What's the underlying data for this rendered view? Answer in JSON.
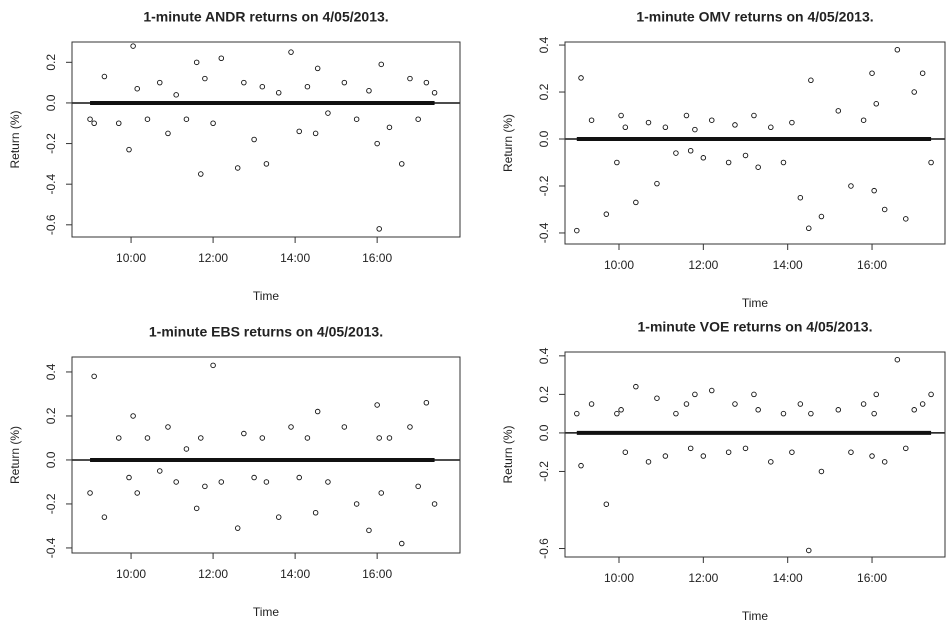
{
  "chart_data": [
    {
      "type": "scatter",
      "title": "1-minute ANDR returns on 4/05/2013.",
      "xlabel": "Time",
      "ylabel": "Return (%)",
      "xlim": [
        8.56,
        18.02
      ],
      "ylim": [
        -0.66,
        0.3
      ],
      "xticks": [
        {
          "value": 10,
          "label": "10:00"
        },
        {
          "value": 12,
          "label": "12:00"
        },
        {
          "value": 14,
          "label": "14:00"
        },
        {
          "value": 16,
          "label": "16:00"
        }
      ],
      "yticks": [
        -0.6,
        -0.4,
        -0.2,
        {
          "value": 0,
          "label": "0.0"
        },
        0.2
      ],
      "hline": 0,
      "x": [
        9.0,
        9.1,
        9.35,
        9.7,
        9.95,
        10.05,
        10.15,
        10.4,
        10.7,
        10.9,
        11.1,
        11.35,
        11.6,
        11.7,
        11.8,
        12.0,
        12.2,
        12.6,
        12.75,
        13.0,
        13.2,
        13.3,
        13.6,
        13.9,
        14.1,
        14.3,
        14.5,
        14.55,
        14.8,
        15.2,
        15.5,
        15.8,
        16.0,
        16.05,
        16.1,
        16.3,
        16.6,
        16.8,
        17.0,
        17.2,
        17.4
      ],
      "values": [
        -0.08,
        -0.1,
        0.13,
        -0.1,
        -0.23,
        0.28,
        0.07,
        -0.08,
        0.1,
        -0.15,
        0.04,
        -0.08,
        0.2,
        -0.35,
        0.12,
        -0.1,
        0.22,
        -0.32,
        0.1,
        -0.18,
        0.08,
        -0.3,
        0.05,
        0.25,
        -0.14,
        0.08,
        -0.15,
        0.17,
        -0.05,
        0.1,
        -0.08,
        0.06,
        -0.2,
        -0.62,
        0.19,
        -0.12,
        -0.3,
        0.12,
        -0.08,
        0.1,
        0.05
      ]
    },
    {
      "type": "scatter",
      "title": "1-minute OMV returns on 4/05/2013.",
      "xlabel": "Time",
      "ylabel": "Return (%)",
      "xlim": [
        8.72,
        17.73
      ],
      "ylim": [
        -0.447,
        0.413
      ],
      "xticks": [
        {
          "value": 10,
          "label": "10:00"
        },
        {
          "value": 12,
          "label": "12:00"
        },
        {
          "value": 14,
          "label": "14:00"
        },
        {
          "value": 16,
          "label": "16:00"
        }
      ],
      "yticks": [
        -0.4,
        -0.2,
        {
          "value": 0,
          "label": "0.0"
        },
        0.2,
        0.4
      ],
      "hline": 0,
      "x": [
        9.0,
        9.1,
        9.35,
        9.7,
        9.95,
        10.05,
        10.15,
        10.4,
        10.7,
        10.9,
        11.1,
        11.35,
        11.6,
        11.7,
        11.8,
        12.0,
        12.2,
        12.6,
        12.75,
        13.0,
        13.2,
        13.3,
        13.6,
        13.9,
        14.1,
        14.3,
        14.5,
        14.55,
        14.8,
        15.2,
        15.5,
        15.8,
        16.0,
        16.05,
        16.1,
        16.3,
        16.6,
        16.8,
        17.0,
        17.2,
        17.4
      ],
      "values": [
        -0.39,
        0.26,
        0.08,
        -0.32,
        -0.1,
        0.1,
        0.05,
        -0.27,
        0.07,
        -0.19,
        0.05,
        -0.06,
        0.1,
        -0.05,
        0.04,
        -0.08,
        0.08,
        -0.1,
        0.06,
        -0.07,
        0.1,
        -0.12,
        0.05,
        -0.1,
        0.07,
        -0.25,
        -0.38,
        0.25,
        -0.33,
        0.12,
        -0.2,
        0.08,
        0.28,
        -0.22,
        0.15,
        -0.3,
        0.38,
        -0.34,
        0.2,
        0.28,
        -0.1
      ]
    },
    {
      "type": "scatter",
      "title": "1-minute EBS returns on 4/05/2013.",
      "xlabel": "Time",
      "ylabel": "Return (%)",
      "xlim": [
        8.56,
        18.02
      ],
      "ylim": [
        -0.423,
        0.468
      ],
      "xticks": [
        {
          "value": 10,
          "label": "10:00"
        },
        {
          "value": 12,
          "label": "12:00"
        },
        {
          "value": 14,
          "label": "14:00"
        },
        {
          "value": 16,
          "label": "16:00"
        }
      ],
      "yticks": [
        -0.4,
        -0.2,
        {
          "value": 0,
          "label": "0.0"
        },
        0.2,
        0.4
      ],
      "hline": 0,
      "x": [
        9.0,
        9.1,
        9.35,
        9.7,
        9.95,
        10.05,
        10.15,
        10.4,
        10.7,
        10.9,
        11.1,
        11.35,
        11.6,
        11.7,
        11.8,
        12.0,
        12.2,
        12.6,
        12.75,
        13.0,
        13.2,
        13.3,
        13.6,
        13.9,
        14.1,
        14.3,
        14.5,
        14.55,
        14.8,
        15.2,
        15.5,
        15.8,
        16.0,
        16.05,
        16.1,
        16.3,
        16.6,
        16.8,
        17.0,
        17.2,
        17.4
      ],
      "values": [
        -0.15,
        0.38,
        -0.26,
        0.1,
        -0.08,
        0.2,
        -0.15,
        0.1,
        -0.05,
        0.15,
        -0.1,
        0.05,
        -0.22,
        0.1,
        -0.12,
        0.43,
        -0.1,
        -0.31,
        0.12,
        -0.08,
        0.1,
        -0.1,
        -0.26,
        0.15,
        -0.08,
        0.1,
        -0.24,
        0.22,
        -0.1,
        0.15,
        -0.2,
        -0.32,
        0.25,
        0.1,
        -0.15,
        0.1,
        -0.38,
        0.15,
        -0.12,
        0.26,
        -0.2
      ]
    },
    {
      "type": "scatter",
      "title": "1-minute VOE returns on 4/05/2013.",
      "xlabel": "Time",
      "ylabel": "Return (%)",
      "xlim": [
        8.72,
        17.73
      ],
      "ylim": [
        -0.644,
        0.42
      ],
      "xticks": [
        {
          "value": 10,
          "label": "10:00"
        },
        {
          "value": 12,
          "label": "12:00"
        },
        {
          "value": 14,
          "label": "14:00"
        },
        {
          "value": 16,
          "label": "16:00"
        }
      ],
      "yticks": [
        -0.6,
        -0.2,
        {
          "value": 0,
          "label": "0.0"
        },
        0.2,
        0.4
      ],
      "hline": 0,
      "x": [
        9.0,
        9.1,
        9.35,
        9.7,
        9.95,
        10.05,
        10.15,
        10.4,
        10.7,
        10.9,
        11.1,
        11.35,
        11.6,
        11.7,
        11.8,
        12.0,
        12.2,
        12.6,
        12.75,
        13.0,
        13.2,
        13.3,
        13.6,
        13.9,
        14.1,
        14.3,
        14.5,
        14.55,
        14.8,
        15.2,
        15.5,
        15.8,
        16.0,
        16.05,
        16.1,
        16.3,
        16.6,
        16.8,
        17.0,
        17.2,
        17.4
      ],
      "values": [
        0.1,
        -0.17,
        0.15,
        -0.37,
        0.1,
        0.12,
        -0.1,
        0.24,
        -0.15,
        0.18,
        -0.12,
        0.1,
        0.15,
        -0.08,
        0.2,
        -0.12,
        0.22,
        -0.1,
        0.15,
        -0.08,
        0.2,
        0.12,
        -0.15,
        0.1,
        -0.1,
        0.15,
        -0.61,
        0.1,
        -0.2,
        0.12,
        -0.1,
        0.15,
        -0.12,
        0.1,
        0.2,
        -0.15,
        0.38,
        -0.08,
        0.12,
        0.15,
        0.2
      ]
    }
  ]
}
